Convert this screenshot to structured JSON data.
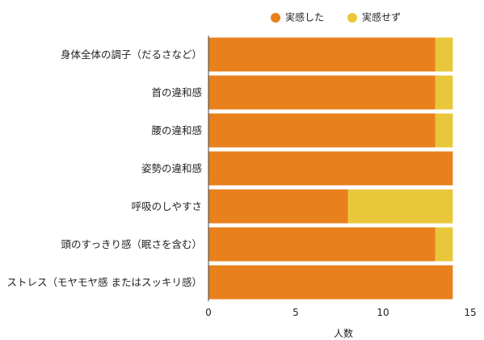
{
  "chart_data": {
    "type": "bar",
    "orientation": "horizontal",
    "stacked": true,
    "categories": [
      "身体全体の調子（だるさなど）",
      "首の違和感",
      "腰の違和感",
      "姿勢の違和感",
      "呼吸のしやすさ",
      "頭のすっきり感（眠さを含む）",
      "ストレス（モヤモヤ感 またはスッキリ感）"
    ],
    "series": [
      {
        "name": "実感した",
        "color": "#E8801C",
        "values": [
          13,
          13,
          13,
          14,
          8,
          13,
          14
        ]
      },
      {
        "name": "実感せず",
        "color": "#E9C73A",
        "values": [
          1,
          1,
          1,
          0,
          6,
          1,
          0
        ]
      }
    ],
    "xlabel": "人数",
    "ylabel": "",
    "xlim": [
      0,
      15
    ],
    "xticks": [
      0,
      5,
      10,
      15
    ],
    "grid": false,
    "legend_position": "top-right"
  }
}
